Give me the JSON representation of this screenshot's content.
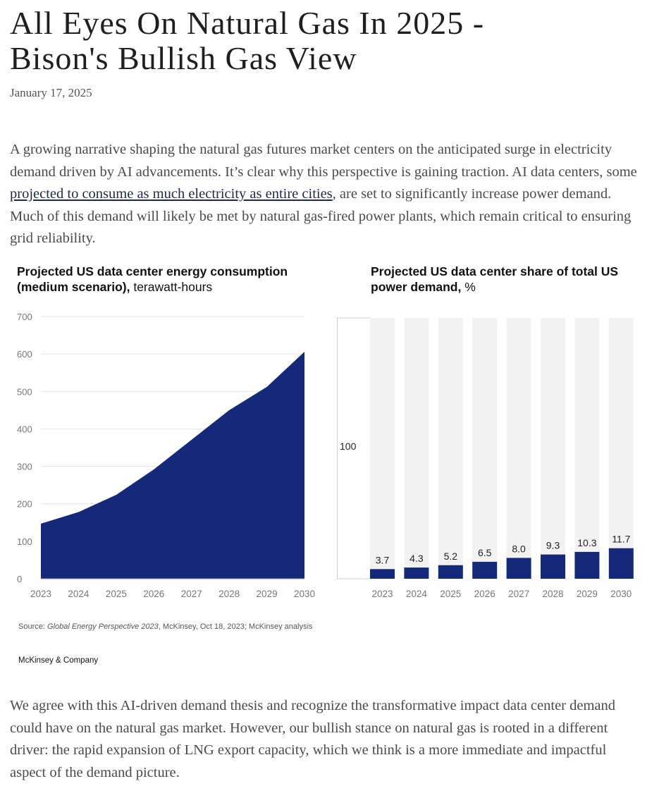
{
  "article": {
    "title_line1": "All Eyes On Natural Gas In 2025 -",
    "title_line2": "Bison's Bullish Gas View",
    "date": "January 17, 2025",
    "para1_before": "A growing narrative shaping the natural gas futures market centers on the anticipated surge in electricity demand driven by AI advancements. It’s clear why this perspective is gaining traction. AI data centers, some ",
    "para1_link": "projected to consume as much electricity as entire cities",
    "para1_after": ", are set to significantly increase power demand. Much of this demand will likely be met by natural gas-fired power plants, which remain critical to ensuring grid reliability.",
    "para2": "We agree with this AI-driven demand thesis and recognize the transformative impact data center demand could have on the natural gas market. However, our bullish stance on natural gas is rooted in a different driver: the rapid expansion of LNG export capacity, which we think is a more immediate and impactful aspect of the demand picture."
  },
  "figure": {
    "source_prefix": "Source: ",
    "source_italic": "Global Energy Perspective 2023",
    "source_rest": ", McKinsey, Oct 18, 2023; McKinsey analysis",
    "brand": "McKinsey & Company"
  },
  "chart_data": [
    {
      "type": "area",
      "title_bold": "Projected US data center energy consumption (medium scenario),",
      "title_regular": " terawatt-hours",
      "x": [
        "2023",
        "2024",
        "2025",
        "2026",
        "2027",
        "2028",
        "2029",
        "2030"
      ],
      "values": [
        147,
        178,
        224,
        292,
        371,
        450,
        512,
        606
      ],
      "yticks": [
        0,
        100,
        200,
        300,
        400,
        500,
        600,
        700
      ],
      "ylim": [
        0,
        700
      ],
      "color": "#15297a"
    },
    {
      "type": "bar",
      "title_bold": "Projected US data center share of total US power demand,",
      "title_regular": " %",
      "categories": [
        "2023",
        "2024",
        "2025",
        "2026",
        "2027",
        "2028",
        "2029",
        "2030"
      ],
      "values": [
        3.7,
        4.3,
        5.2,
        6.5,
        8.0,
        9.3,
        10.3,
        11.7
      ],
      "value_labels": [
        "3.7",
        "4.3",
        "5.2",
        "6.5",
        "8.0",
        "9.3",
        "10.3",
        "11.7"
      ],
      "total_label": "100",
      "ylim": [
        0,
        100
      ],
      "color": "#15297a",
      "background_color": "#f2f2f2"
    }
  ]
}
